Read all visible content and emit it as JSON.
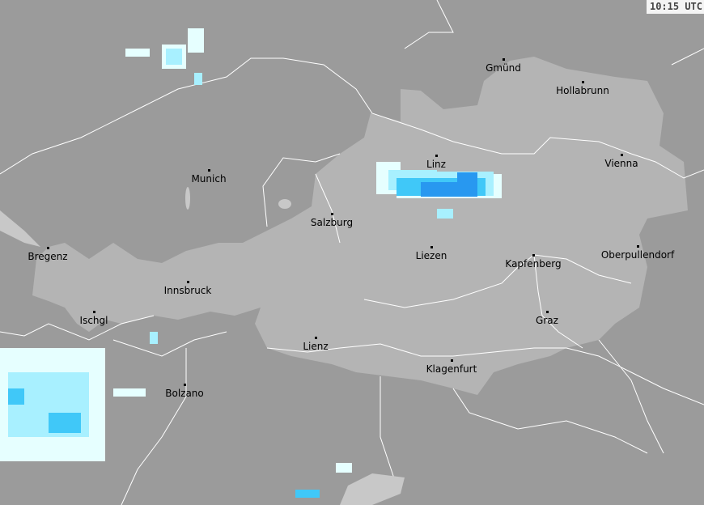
{
  "timestamp": "10:15 UTC",
  "colors": {
    "outside": "#9b9b9b",
    "country": "#b4b4b4",
    "border": "#ffffff",
    "lake": "#c8c8c8",
    "precip_light": "#e6ffff",
    "precip_low": "#a8f0ff",
    "precip_mid": "#40c8f8",
    "precip_high": "#2898f0"
  },
  "cities": [
    {
      "name": "Gmünd"
    },
    {
      "name": "Hollabrunn"
    },
    {
      "name": "Linz"
    },
    {
      "name": "Vienna"
    },
    {
      "name": "Munich"
    },
    {
      "name": "Salzburg"
    },
    {
      "name": "Bregenz"
    },
    {
      "name": "Liezen"
    },
    {
      "name": "Kapfenberg"
    },
    {
      "name": "Oberpullendorf"
    },
    {
      "name": "Innsbruck"
    },
    {
      "name": "Ischgl"
    },
    {
      "name": "Graz"
    },
    {
      "name": "Lienz"
    },
    {
      "name": "Klagenfurt"
    },
    {
      "name": "Bolzano"
    }
  ]
}
